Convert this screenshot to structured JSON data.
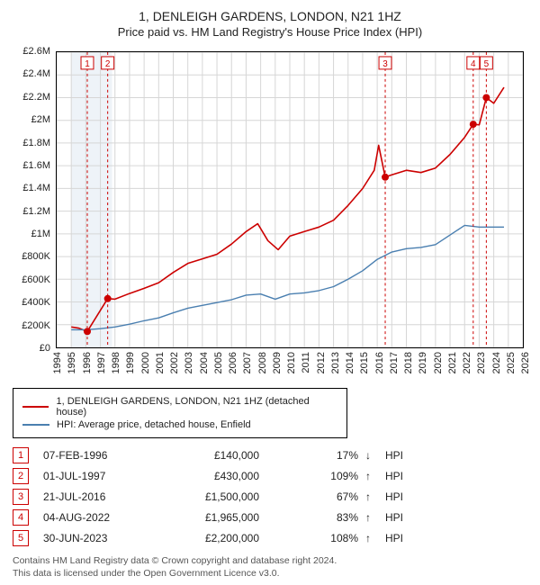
{
  "title": "1, DENLEIGH GARDENS, LONDON, N21 1HZ",
  "subtitle": "Price paid vs. HM Land Registry's House Price Index (HPI)",
  "chart": {
    "type": "line",
    "xlim": [
      1994,
      2026
    ],
    "ylim": [
      0,
      2600000
    ],
    "ytick_step": 200000,
    "yticks": [
      "£0",
      "£200K",
      "£400K",
      "£600K",
      "£800K",
      "£1M",
      "£1.2M",
      "£1.4M",
      "£1.6M",
      "£1.8M",
      "£2M",
      "£2.2M",
      "£2.4M",
      "£2.6M"
    ],
    "xticks": [
      1994,
      1995,
      1996,
      1997,
      1998,
      1999,
      2000,
      2001,
      2002,
      2003,
      2004,
      2005,
      2006,
      2007,
      2008,
      2009,
      2010,
      2011,
      2012,
      2013,
      2014,
      2015,
      2016,
      2017,
      2018,
      2019,
      2020,
      2021,
      2022,
      2023,
      2024,
      2025,
      2026
    ],
    "grid_color": "#d6d6d6",
    "background_color": "#ffffff",
    "band_y": {
      "from": 1995.0,
      "to": 1997.8,
      "color": "#eef3f8"
    },
    "series": [
      {
        "name": "price_paid",
        "color": "#cc0000",
        "width": 1.6,
        "label": "1, DENLEIGH GARDENS, LONDON, N21 1HZ (detached house)",
        "points": [
          [
            1995.0,
            180000
          ],
          [
            1995.5,
            170000
          ],
          [
            1996.1,
            140000
          ],
          [
            1997.5,
            430000
          ],
          [
            1998.0,
            425000
          ],
          [
            1999.0,
            475000
          ],
          [
            2000.0,
            520000
          ],
          [
            2001.0,
            570000
          ],
          [
            2002.0,
            660000
          ],
          [
            2003.0,
            740000
          ],
          [
            2004.0,
            780000
          ],
          [
            2005.0,
            820000
          ],
          [
            2006.0,
            910000
          ],
          [
            2007.0,
            1020000
          ],
          [
            2007.8,
            1090000
          ],
          [
            2008.5,
            940000
          ],
          [
            2009.2,
            860000
          ],
          [
            2010.0,
            980000
          ],
          [
            2011.0,
            1020000
          ],
          [
            2012.0,
            1060000
          ],
          [
            2013.0,
            1120000
          ],
          [
            2014.0,
            1250000
          ],
          [
            2015.0,
            1400000
          ],
          [
            2015.8,
            1560000
          ],
          [
            2016.1,
            1780000
          ],
          [
            2016.55,
            1500000
          ],
          [
            2017.0,
            1520000
          ],
          [
            2018.0,
            1560000
          ],
          [
            2019.0,
            1540000
          ],
          [
            2020.0,
            1580000
          ],
          [
            2021.0,
            1700000
          ],
          [
            2022.0,
            1850000
          ],
          [
            2022.59,
            1965000
          ],
          [
            2023.0,
            1960000
          ],
          [
            2023.49,
            2200000
          ],
          [
            2024.0,
            2150000
          ],
          [
            2024.7,
            2290000
          ]
        ]
      },
      {
        "name": "hpi",
        "color": "#4a7fb0",
        "width": 1.4,
        "label": "HPI: Average price, detached house, Enfield",
        "points": [
          [
            1995.0,
            155000
          ],
          [
            1996.0,
            155000
          ],
          [
            1997.0,
            165000
          ],
          [
            1998.0,
            180000
          ],
          [
            1999.0,
            205000
          ],
          [
            2000.0,
            235000
          ],
          [
            2001.0,
            260000
          ],
          [
            2002.0,
            305000
          ],
          [
            2003.0,
            345000
          ],
          [
            2004.0,
            370000
          ],
          [
            2005.0,
            395000
          ],
          [
            2006.0,
            420000
          ],
          [
            2007.0,
            460000
          ],
          [
            2008.0,
            470000
          ],
          [
            2009.0,
            425000
          ],
          [
            2010.0,
            470000
          ],
          [
            2011.0,
            480000
          ],
          [
            2012.0,
            500000
          ],
          [
            2013.0,
            535000
          ],
          [
            2014.0,
            600000
          ],
          [
            2015.0,
            675000
          ],
          [
            2016.0,
            775000
          ],
          [
            2017.0,
            840000
          ],
          [
            2018.0,
            870000
          ],
          [
            2019.0,
            880000
          ],
          [
            2020.0,
            905000
          ],
          [
            2021.0,
            990000
          ],
          [
            2022.0,
            1075000
          ],
          [
            2023.0,
            1060000
          ],
          [
            2024.0,
            1060000
          ],
          [
            2024.7,
            1060000
          ]
        ]
      }
    ],
    "markers": [
      {
        "n": 1,
        "x": 1996.1,
        "y": 140000,
        "dot": true
      },
      {
        "n": 2,
        "x": 1997.5,
        "y": 430000,
        "dot": true
      },
      {
        "n": 3,
        "x": 2016.55,
        "y": 1500000,
        "dot": true
      },
      {
        "n": 4,
        "x": 2022.59,
        "y": 1965000,
        "dot": true
      },
      {
        "n": 5,
        "x": 2023.49,
        "y": 2200000,
        "dot": true
      }
    ],
    "marker_style": {
      "rule_color": "#cc0000",
      "rule_dash": "3,3",
      "dot_color": "#cc0000",
      "dot_radius": 4,
      "box_border": "#cc0000",
      "box_fill": "#ffffff",
      "box_text_color": "#cc0000"
    }
  },
  "legend": [
    {
      "color": "#cc0000",
      "label": "1, DENLEIGH GARDENS, LONDON, N21 1HZ (detached house)"
    },
    {
      "color": "#4a7fb0",
      "label": "HPI: Average price, detached house, Enfield"
    }
  ],
  "sales": [
    {
      "n": 1,
      "date": "07-FEB-1996",
      "price": "£140,000",
      "pct": "17%",
      "dir": "↓",
      "suffix": "HPI"
    },
    {
      "n": 2,
      "date": "01-JUL-1997",
      "price": "£430,000",
      "pct": "109%",
      "dir": "↑",
      "suffix": "HPI"
    },
    {
      "n": 3,
      "date": "21-JUL-2016",
      "price": "£1,500,000",
      "pct": "67%",
      "dir": "↑",
      "suffix": "HPI"
    },
    {
      "n": 4,
      "date": "04-AUG-2022",
      "price": "£1,965,000",
      "pct": "83%",
      "dir": "↑",
      "suffix": "HPI"
    },
    {
      "n": 5,
      "date": "30-JUN-2023",
      "price": "£2,200,000",
      "pct": "108%",
      "dir": "↑",
      "suffix": "HPI"
    }
  ],
  "footnote_line1": "Contains HM Land Registry data © Crown copyright and database right 2024.",
  "footnote_line2": "This data is licensed under the Open Government Licence v3.0."
}
